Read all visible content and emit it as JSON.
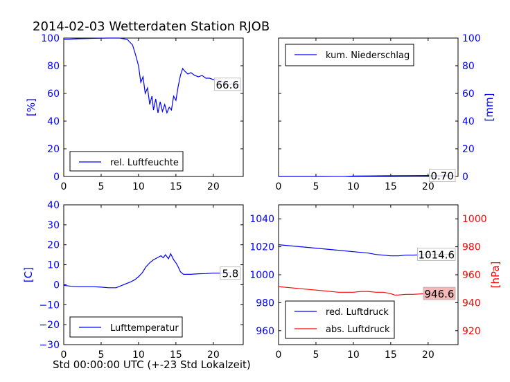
{
  "title": "2014-02-03 Wetterdaten Station RJOB",
  "xlabel": "Std 00:00:00 UTC (+-23 Std Lokalzeit)",
  "colors": {
    "blue": "#0000ff",
    "red": "#ff0000",
    "black": "#000000",
    "label_bg_red": "#f4b8b8"
  },
  "chart_data": [
    {
      "id": "humidity",
      "type": "line",
      "xlim": [
        0,
        24
      ],
      "xticks": [
        0,
        5,
        10,
        15,
        20
      ],
      "ylim": [
        0,
        100
      ],
      "yticks": [
        0,
        20,
        40,
        60,
        80,
        100
      ],
      "ylabel": "[%]",
      "legend": "bottom-left",
      "last_value_label": "66.6",
      "series": [
        {
          "name": "rel. Luftfeuchte",
          "color": "#0000ff",
          "x": [
            0,
            2,
            4,
            6,
            7.5,
            8.5,
            9.2,
            9.6,
            10.0,
            10.3,
            10.6,
            10.9,
            11.2,
            11.5,
            11.8,
            12.0,
            12.3,
            12.6,
            12.9,
            13.2,
            13.5,
            13.8,
            14.1,
            14.4,
            14.7,
            15.0,
            15.3,
            15.6,
            15.9,
            16.2,
            16.6,
            17.0,
            17.5,
            18.0,
            18.5,
            19.0,
            19.5,
            20.0,
            20.5,
            21.0,
            21.5,
            22.0,
            22.5,
            23.0,
            23.5
          ],
          "y": [
            99,
            99.5,
            99.8,
            100,
            100,
            99,
            95,
            88,
            80,
            68,
            72,
            60,
            64,
            52,
            58,
            48,
            56,
            46,
            54,
            47,
            52,
            46,
            50,
            48,
            58,
            55,
            65,
            73,
            78,
            76,
            74,
            75,
            73,
            72,
            73,
            71,
            71,
            70,
            70,
            69,
            68,
            66,
            67,
            65,
            66.6
          ]
        }
      ]
    },
    {
      "id": "precipitation",
      "type": "line",
      "xlim": [
        0,
        24
      ],
      "xticks": [
        0,
        5,
        10,
        15,
        20
      ],
      "ylim": [
        0,
        100
      ],
      "yticks": [
        0,
        20,
        40,
        60,
        80,
        100
      ],
      "ylabel": "[mm]",
      "legend": "top-left",
      "last_value_label": "0.70",
      "series": [
        {
          "name": "kum. Niederschlag",
          "color": "#0000ff",
          "x": [
            0,
            6,
            9,
            10,
            12,
            14,
            16,
            18,
            20,
            22,
            23.5
          ],
          "y": [
            0,
            0,
            0.1,
            0.3,
            0.4,
            0.5,
            0.6,
            0.65,
            0.7,
            0.7,
            0.7
          ]
        }
      ]
    },
    {
      "id": "temperature",
      "type": "line",
      "xlim": [
        0,
        24
      ],
      "xticks": [
        0,
        5,
        10,
        15,
        20
      ],
      "ylim": [
        -30,
        40
      ],
      "yticks": [
        -30,
        -20,
        -10,
        0,
        10,
        20,
        30,
        40
      ],
      "ylabel": "[C]",
      "legend": "bottom-left",
      "last_value_label": "5.8",
      "series": [
        {
          "name": "Lufttemperatur",
          "color": "#0000ff",
          "x": [
            0,
            1,
            2,
            3,
            4,
            5,
            6,
            7,
            8,
            9,
            9.5,
            10,
            10.5,
            11,
            11.5,
            12,
            12.5,
            13,
            13.3,
            13.6,
            14,
            14.3,
            14.7,
            15,
            15.3,
            15.6,
            16,
            16.5,
            17,
            18,
            19,
            20,
            21,
            22,
            22.5,
            23,
            23.5
          ],
          "y": [
            -0.3,
            -0.8,
            -1,
            -1,
            -1,
            -1.2,
            -1.5,
            -1.5,
            0,
            1.5,
            2.5,
            4,
            6,
            9,
            11,
            12.5,
            13.5,
            14.5,
            13.5,
            15,
            13,
            15.5,
            12.5,
            11,
            9,
            6.5,
            5.2,
            5.2,
            5.2,
            5.5,
            5.6,
            5.8,
            5.8,
            6,
            5.8,
            6,
            5.8
          ]
        }
      ]
    },
    {
      "id": "pressure",
      "type": "line",
      "xlim": [
        0,
        24
      ],
      "xticks": [
        0,
        5,
        10,
        15,
        20
      ],
      "ylim": [
        950,
        1050
      ],
      "yticks": [
        960,
        980,
        1000,
        1020,
        1040
      ],
      "y2lim": [
        910,
        1010
      ],
      "y2ticks": [
        920,
        940,
        960,
        980,
        1000
      ],
      "y2label": "[hPa]",
      "legend": "bottom-left",
      "last_value_labels": [
        "1014.6",
        "946.6"
      ],
      "series": [
        {
          "name": "red. Luftdruck",
          "color": "#0000ff",
          "axis": "left",
          "x": [
            0,
            1,
            2,
            3,
            4,
            5,
            6,
            7,
            8,
            9,
            10,
            11,
            12,
            13,
            14,
            15,
            16,
            17,
            18,
            19,
            20,
            21,
            22,
            23,
            23.5
          ],
          "y": [
            1021.5,
            1021,
            1020.5,
            1020,
            1019.5,
            1019,
            1018.5,
            1018,
            1017.5,
            1017,
            1016.5,
            1016,
            1015.5,
            1014.5,
            1014,
            1013.5,
            1013.5,
            1014,
            1014,
            1014.3,
            1014.5,
            1014.5,
            1014.6,
            1014.6,
            1014.6
          ]
        },
        {
          "name": "abs. Luftdruck",
          "color": "#ff0000",
          "axis": "right",
          "x": [
            0,
            1,
            2,
            3,
            4,
            5,
            6,
            7,
            8,
            9,
            10,
            11,
            12,
            13,
            14,
            15,
            15.5,
            16,
            17,
            18,
            19,
            20,
            21,
            22,
            23,
            23.5
          ],
          "y": [
            951.5,
            951,
            950.5,
            950,
            949.5,
            949,
            948.5,
            948,
            947.5,
            947.5,
            947.5,
            948,
            948,
            947.5,
            947.5,
            946.5,
            945.5,
            945.5,
            946,
            946,
            946.3,
            946.5,
            946.5,
            946.6,
            946.6,
            946.6
          ]
        }
      ]
    }
  ]
}
